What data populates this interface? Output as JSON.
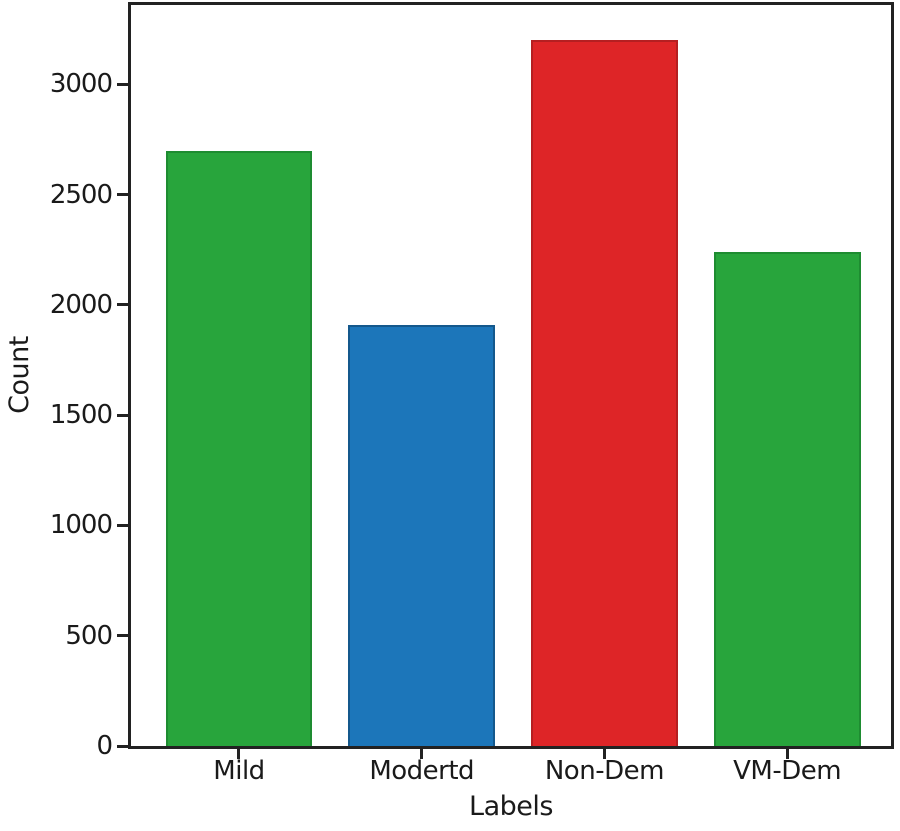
{
  "chart_data": {
    "type": "bar",
    "title": "",
    "xlabel": "Labels",
    "ylabel": "Count",
    "categories": [
      "Mild",
      "Modertd",
      "Non-Dem",
      "VM-Dem"
    ],
    "values": [
      2700,
      1910,
      3200,
      2240
    ],
    "bar_colors": [
      "#28a53c",
      "#1c76ba",
      "#de2527",
      "#28a53c"
    ],
    "bar_edge_colors": [
      "#1e8c31",
      "#14588c",
      "#b51f21",
      "#1e8c31"
    ],
    "ylim": [
      0,
      3360
    ],
    "yticks": [
      0,
      500,
      1000,
      1500,
      2000,
      2500,
      3000
    ],
    "grid": false,
    "legend": null,
    "colors": {
      "axis": "#222222",
      "text": "#1a1a1a",
      "background": "#ffffff"
    }
  }
}
